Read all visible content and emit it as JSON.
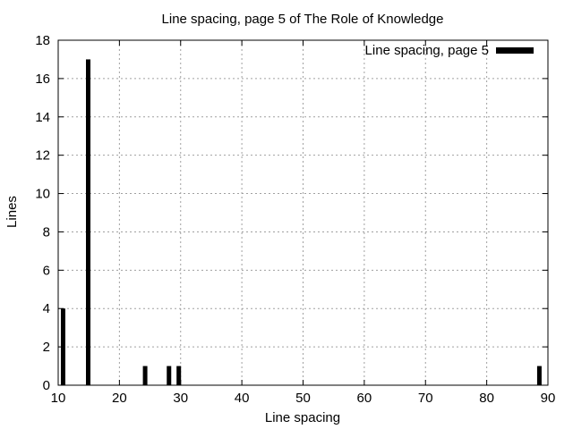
{
  "chart_data": {
    "type": "bar",
    "title": "Line spacing, page 5 of The Role of Knowledge",
    "xlabel": "Line spacing",
    "ylabel": "Lines",
    "xlim": [
      10,
      90
    ],
    "ylim": [
      0,
      18
    ],
    "xticks": [
      10,
      20,
      30,
      40,
      50,
      60,
      70,
      80,
      90
    ],
    "yticks": [
      0,
      2,
      4,
      6,
      8,
      10,
      12,
      14,
      16,
      18
    ],
    "grid": true,
    "legend_position": "top-right",
    "series": [
      {
        "name": "Line spacing, page 5",
        "color": "#000000",
        "x": [
          10.8,
          14.9,
          24.2,
          28.1,
          29.7,
          88.6
        ],
        "values": [
          4,
          17,
          1,
          1,
          1,
          1
        ]
      }
    ]
  }
}
